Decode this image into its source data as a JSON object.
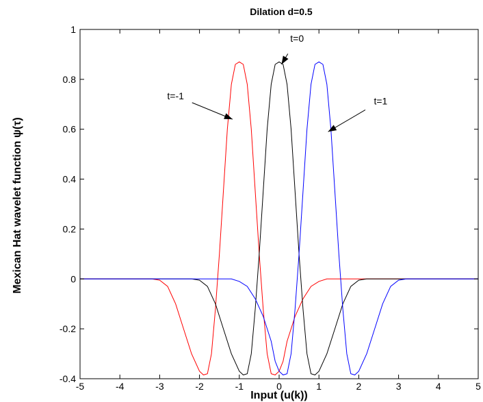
{
  "chart_data": {
    "type": "line",
    "title": "Dilation d=0.5",
    "xlabel": "Input (u(k))",
    "ylabel": "Mexican Hat wavelet function   ψ(τ)",
    "xlim": [
      -5,
      5
    ],
    "ylim": [
      -0.4,
      1
    ],
    "xticks": [
      "-5",
      "-4",
      "-3",
      "-2",
      "-1",
      "0",
      "1",
      "2",
      "3",
      "4",
      "5"
    ],
    "yticks": [
      "-0.4",
      "-0.2",
      "0",
      "0.2",
      "0.4",
      "0.6",
      "0.8",
      "1"
    ],
    "grid": false,
    "series": [
      {
        "color": "#ff0000",
        "x": [
          -5,
          -4,
          -3.2,
          -3.0,
          -2.8,
          -2.6,
          -2.4,
          -2.2,
          -2.0,
          -1.9,
          -1.8,
          -1.7,
          -1.6,
          -1.5,
          -1.4,
          -1.3,
          -1.2,
          -1.1,
          -1.0,
          -0.9,
          -0.8,
          -0.7,
          -0.6,
          -0.5,
          -0.4,
          -0.3,
          -0.2,
          -0.1,
          0.0,
          0.1,
          0.2,
          0.4,
          0.6,
          0.8,
          1.0,
          1.2,
          1.5,
          2,
          3,
          4,
          5
        ],
        "y": [
          0,
          0,
          0,
          -0.005,
          -0.03,
          -0.1,
          -0.2,
          -0.3,
          -0.37,
          -0.385,
          -0.38,
          -0.3,
          -0.12,
          0.1,
          0.35,
          0.6,
          0.78,
          0.86,
          0.87,
          0.86,
          0.78,
          0.6,
          0.35,
          0.1,
          -0.12,
          -0.3,
          -0.38,
          -0.385,
          -0.37,
          -0.33,
          -0.25,
          -0.15,
          -0.08,
          -0.03,
          -0.01,
          0,
          0,
          0,
          0,
          0,
          0
        ]
      },
      {
        "color": "#000000",
        "x": [
          -5,
          -3,
          -2.2,
          -2.0,
          -1.8,
          -1.6,
          -1.4,
          -1.2,
          -1.0,
          -0.9,
          -0.8,
          -0.7,
          -0.6,
          -0.5,
          -0.4,
          -0.3,
          -0.2,
          -0.1,
          0.0,
          0.1,
          0.2,
          0.3,
          0.4,
          0.5,
          0.6,
          0.7,
          0.8,
          0.9,
          1.0,
          1.2,
          1.4,
          1.6,
          1.8,
          2.0,
          2.2,
          3,
          5
        ],
        "y": [
          0,
          0,
          0,
          -0.005,
          -0.03,
          -0.1,
          -0.2,
          -0.3,
          -0.37,
          -0.385,
          -0.38,
          -0.3,
          -0.12,
          0.1,
          0.35,
          0.6,
          0.78,
          0.86,
          0.87,
          0.86,
          0.78,
          0.6,
          0.35,
          0.1,
          -0.12,
          -0.3,
          -0.38,
          -0.385,
          -0.37,
          -0.3,
          -0.2,
          -0.1,
          -0.03,
          -0.005,
          0,
          0,
          0
        ]
      },
      {
        "color": "#0000ff",
        "x": [
          -5,
          -3,
          -2,
          -1.5,
          -1.2,
          -1.0,
          -0.8,
          -0.6,
          -0.4,
          -0.2,
          -0.1,
          0.0,
          0.1,
          0.2,
          0.3,
          0.4,
          0.5,
          0.6,
          0.7,
          0.8,
          0.9,
          1.0,
          1.1,
          1.2,
          1.3,
          1.4,
          1.5,
          1.6,
          1.7,
          1.8,
          1.9,
          2.0,
          2.2,
          2.4,
          2.6,
          2.8,
          3.0,
          3.2,
          4,
          5
        ],
        "y": [
          0,
          0,
          0,
          0,
          0,
          -0.01,
          -0.03,
          -0.08,
          -0.15,
          -0.25,
          -0.33,
          -0.37,
          -0.385,
          -0.38,
          -0.3,
          -0.12,
          0.1,
          0.35,
          0.6,
          0.78,
          0.86,
          0.87,
          0.86,
          0.78,
          0.6,
          0.35,
          0.1,
          -0.12,
          -0.3,
          -0.38,
          -0.385,
          -0.37,
          -0.3,
          -0.2,
          -0.1,
          -0.03,
          -0.005,
          0,
          0,
          0
        ]
      }
    ],
    "annotations": [
      {
        "text": "t=-1",
        "x": -2.6,
        "y": 0.72,
        "arrow_to": [
          -1.17,
          0.64
        ]
      },
      {
        "text": "t=0",
        "x": 0.45,
        "y": 0.95,
        "arrow_to": [
          0.06,
          0.86
        ]
      },
      {
        "text": "t=1",
        "x": 2.55,
        "y": 0.7,
        "arrow_to": [
          1.23,
          0.59
        ]
      }
    ]
  }
}
